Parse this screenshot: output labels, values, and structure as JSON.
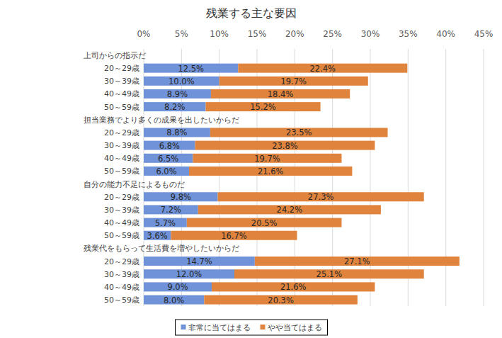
{
  "chart_data": {
    "type": "bar",
    "title": "残業する主な要因",
    "orientation": "horizontal",
    "stacked": true,
    "data_labels": true,
    "grid": true,
    "legend": "bottom",
    "categories": [
      "上司からの指示だ",
      "20～29歳",
      "30～39歳",
      "40～49歳",
      "50～59歳",
      "担当業務でより多くの成果を出したいからだ",
      "20～29歳",
      "30～39歳",
      "40～49歳",
      "50～59歳",
      "自分の能力不足によるものだ",
      "20～29歳",
      "30～39歳",
      "40～49歳",
      "50～59歳",
      "残業代をもらって生活費を増やしたいからだ",
      "20～29歳",
      "30～39歳",
      "40～49歳",
      "50～59歳"
    ],
    "series": [
      {
        "name": "非常に当てはまる",
        "color": "#7092d8",
        "values": [
          null,
          12.5,
          10.0,
          8.9,
          8.2,
          null,
          8.8,
          6.8,
          6.5,
          6.0,
          null,
          9.8,
          7.2,
          5.7,
          3.6,
          null,
          14.7,
          12.0,
          9.0,
          8.0
        ],
        "value_labels": [
          null,
          "12.5%",
          "10.0%",
          "8.9%",
          "8.2%",
          null,
          "8.8%",
          "6.8%",
          "6.5%",
          "6.0%",
          null,
          "9.8%",
          "7.2%",
          "5.7%",
          "3.6%",
          null,
          "14.7%",
          "12.0%",
          "9.0%",
          "8.0%"
        ]
      },
      {
        "name": "やや当てはまる",
        "color": "#e0843d",
        "values": [
          null,
          22.4,
          19.7,
          18.4,
          15.2,
          null,
          23.5,
          23.8,
          19.7,
          21.6,
          null,
          27.3,
          24.2,
          20.5,
          16.7,
          null,
          27.1,
          25.1,
          21.6,
          20.3
        ],
        "value_labels": [
          null,
          "22.4%",
          "19.7%",
          "18.4%",
          "15.2%",
          null,
          "23.5%",
          "23.8%",
          "19.7%",
          "21.6%",
          null,
          "27.3%",
          "24.2%",
          "20.5%",
          "16.7%",
          null,
          "27.1%",
          "25.1%",
          "21.6%",
          "20.3%"
        ]
      }
    ],
    "xlim": [
      0,
      45
    ],
    "xticks": [
      {
        "value": 0,
        "label": "0%"
      },
      {
        "value": 5,
        "label": "5%"
      },
      {
        "value": 10,
        "label": "10%"
      },
      {
        "value": 15,
        "label": "15%"
      },
      {
        "value": 20,
        "label": "20%"
      },
      {
        "value": 25,
        "label": "25%"
      },
      {
        "value": 30,
        "label": "30%"
      },
      {
        "value": 35,
        "label": "35%"
      },
      {
        "value": 40,
        "label": "40%"
      },
      {
        "value": 45,
        "label": "45%"
      }
    ]
  }
}
